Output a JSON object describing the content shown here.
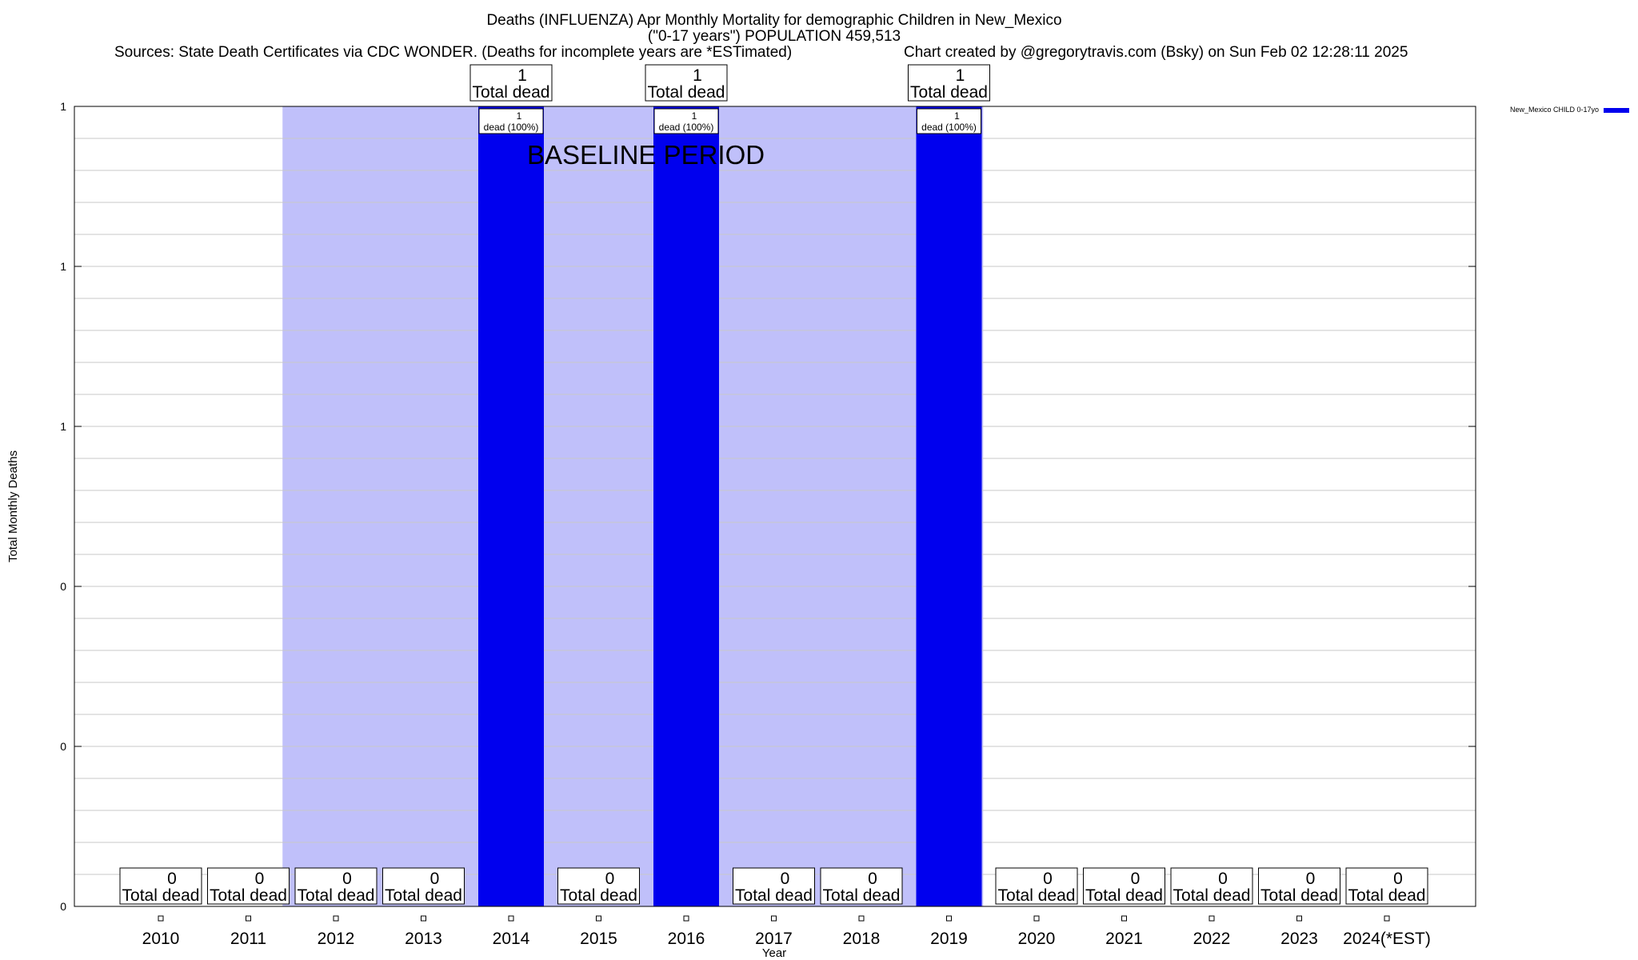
{
  "chart_data": {
    "type": "bar",
    "title_lines": [
      "Deaths (INFLUENZA) Apr Monthly Mortality for demographic Children in New_Mexico",
      "(\"0-17 years\") POPULATION 459,513"
    ],
    "sources_text": "Sources: State Death Certificates via CDC WONDER. (Deaths for incomplete years are *ESTimated)",
    "credit_text": "Chart created by @gregorytravis.com (Bsky) on Sun Feb 02 12:28:11 2025",
    "xlabel": "Year",
    "ylabel": "Total Monthly Deaths",
    "categories": [
      "2010",
      "2011",
      "2012",
      "2013",
      "2014",
      "2015",
      "2016",
      "2017",
      "2018",
      "2019",
      "2020",
      "2021",
      "2022",
      "2023",
      "2024(*EST)"
    ],
    "series": [
      {
        "name": "New_Mexico CHILD 0-17yo",
        "values": [
          0,
          0,
          0,
          0,
          1,
          0,
          1,
          0,
          0,
          1,
          0,
          0,
          0,
          0,
          0
        ],
        "color": "#0000ee"
      }
    ],
    "ylim": [
      0,
      1
    ],
    "ytick_labels": [
      "0",
      "0",
      "0",
      "1",
      "1",
      "1"
    ],
    "total_label_text": "Total dead",
    "bar_inner_label_text": "dead (100%)",
    "baseline": {
      "label": "BASELINE PERIOD",
      "start_category": "2012",
      "end_category": "2019",
      "color": "#c0c0fa"
    },
    "legend_position": "top-right",
    "grid": true
  }
}
